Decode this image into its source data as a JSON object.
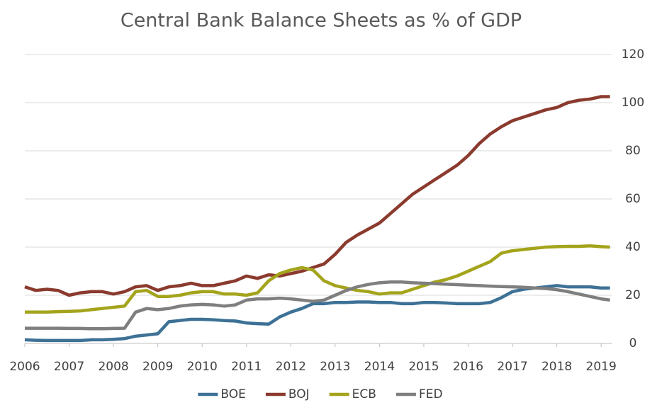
{
  "chart_data": {
    "type": "line",
    "title": "Central Bank Balance Sheets as % of GDP",
    "x": [
      2006,
      2006.25,
      2006.5,
      2006.75,
      2007,
      2007.25,
      2007.5,
      2007.75,
      2008,
      2008.25,
      2008.5,
      2008.75,
      2009,
      2009.25,
      2009.5,
      2009.75,
      2010,
      2010.25,
      2010.5,
      2010.75,
      2011,
      2011.25,
      2011.5,
      2011.75,
      2012,
      2012.25,
      2012.5,
      2012.75,
      2013,
      2013.25,
      2013.5,
      2013.75,
      2014,
      2014.25,
      2014.5,
      2014.75,
      2015,
      2015.25,
      2015.5,
      2015.75,
      2016,
      2016.25,
      2016.5,
      2016.75,
      2017,
      2017.25,
      2017.5,
      2017.75,
      2018,
      2018.25,
      2018.5,
      2018.75,
      2019,
      2019.2
    ],
    "series": [
      {
        "name": "BOE",
        "color": "#3d7196",
        "values": [
          1.5,
          1.3,
          1.2,
          1.2,
          1.2,
          1.2,
          1.5,
          1.5,
          1.7,
          2,
          3,
          3.5,
          4,
          9,
          9.5,
          10,
          10,
          9.8,
          9.5,
          9.3,
          8.5,
          8.2,
          8,
          11,
          13,
          14.5,
          16.5,
          16.5,
          17,
          17,
          17.2,
          17.2,
          17,
          17,
          16.5,
          16.5,
          17,
          17,
          16.8,
          16.5,
          16.5,
          16.5,
          17,
          19,
          21.5,
          22.5,
          23,
          23.5,
          24,
          23.5,
          23.5,
          23.5,
          23,
          23
        ]
      },
      {
        "name": "BOJ",
        "color": "#8b3a2e",
        "values": [
          23.5,
          22,
          22.5,
          22,
          20,
          21,
          21.5,
          21.5,
          20.5,
          21.5,
          23.5,
          24,
          22,
          23.5,
          24,
          25,
          24,
          24,
          25,
          26,
          28,
          27,
          28.5,
          28,
          29,
          30,
          31.5,
          33,
          37,
          42,
          45,
          47.5,
          50,
          54,
          58,
          62,
          65,
          68,
          71,
          74,
          78,
          83,
          87,
          90,
          92.5,
          94,
          95.5,
          97,
          98,
          100,
          101,
          101.5,
          102.5,
          102.5
        ]
      },
      {
        "name": "ECB",
        "color": "#a4a41c",
        "values": [
          13,
          13,
          13,
          13.2,
          13.3,
          13.5,
          14,
          14.5,
          15,
          15.5,
          21.5,
          22,
          19.5,
          19.5,
          20,
          21,
          21.5,
          21.5,
          20.5,
          20.5,
          20,
          21,
          26,
          29,
          30.5,
          31.5,
          30.5,
          26,
          24,
          23,
          22,
          21.5,
          20.5,
          21,
          21,
          22.5,
          24,
          25.5,
          26.5,
          28,
          30,
          32,
          34,
          37.5,
          38.5,
          39,
          39.5,
          40,
          40.2,
          40.3,
          40.3,
          40.5,
          40.2,
          40
        ]
      },
      {
        "name": "FED",
        "color": "#7f7f7f",
        "values": [
          6.3,
          6.3,
          6.3,
          6.3,
          6.2,
          6.2,
          6.1,
          6.1,
          6.2,
          6.3,
          13,
          14.5,
          14,
          14.5,
          15.5,
          16,
          16.2,
          16,
          15.5,
          16,
          18,
          18.5,
          18.5,
          18.8,
          18.5,
          18,
          17.5,
          18,
          20,
          22,
          23.5,
          24.5,
          25.2,
          25.5,
          25.5,
          25.2,
          25,
          24.8,
          24.6,
          24.4,
          24.2,
          24,
          23.8,
          23.6,
          23.5,
          23.3,
          23,
          22.8,
          22.3,
          21.5,
          20.5,
          19.5,
          18.5,
          18
        ]
      }
    ],
    "xlim": [
      2006,
      2019.25
    ],
    "xticks": [
      2006,
      2007,
      2008,
      2009,
      2010,
      2011,
      2012,
      2013,
      2014,
      2015,
      2016,
      2017,
      2018,
      2019
    ],
    "ylim": [
      0,
      120
    ],
    "yticks": [
      0,
      20,
      40,
      60,
      80,
      100,
      120
    ],
    "grid": true,
    "legend": "bottom"
  }
}
